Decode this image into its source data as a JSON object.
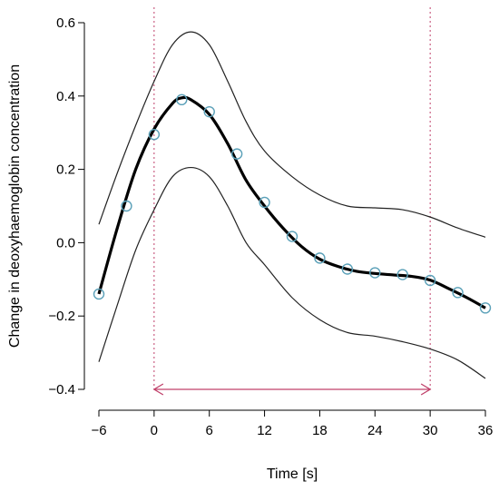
{
  "chart_data": {
    "type": "line",
    "title": "",
    "xlabel": "Time [s]",
    "ylabel": "Change in deoxyhaemoglobin concentration",
    "xlim": [
      -6,
      36
    ],
    "ylim": [
      -0.4,
      0.6
    ],
    "x_ticks": [
      -6,
      0,
      6,
      12,
      18,
      24,
      30,
      36
    ],
    "x_tick_labels": [
      "−6",
      "0",
      "6",
      "12",
      "18",
      "24",
      "30",
      "36"
    ],
    "y_ticks": [
      -0.4,
      -0.2,
      0.0,
      0.2,
      0.4,
      0.6
    ],
    "y_tick_labels": [
      "−0.4",
      "−0.2",
      "0.0",
      "0.2",
      "0.4",
      "0.6"
    ],
    "grid": false,
    "legend": "none",
    "colors": {
      "mean_curve": "#000000",
      "band_curves": "#222222",
      "points_stroke": "#5aa0b8",
      "reference_lines": "#c0406a",
      "arrow": "#c0406a"
    },
    "series": [
      {
        "role": "fitted-mean",
        "x": [
          -6,
          -4,
          -2,
          0,
          2,
          3,
          4,
          6,
          8,
          10,
          12,
          14,
          16,
          18,
          20,
          22,
          24,
          26,
          28,
          30,
          32,
          34,
          36
        ],
        "y": [
          -0.14,
          0.04,
          0.2,
          0.31,
          0.38,
          0.395,
          0.39,
          0.35,
          0.27,
          0.17,
          0.1,
          0.04,
          -0.01,
          -0.045,
          -0.065,
          -0.078,
          -0.084,
          -0.088,
          -0.092,
          -0.102,
          -0.125,
          -0.15,
          -0.178
        ]
      },
      {
        "role": "upper-bound",
        "x": [
          -6,
          -4,
          -2,
          0,
          2,
          4,
          6,
          8,
          10,
          12,
          15,
          18,
          21,
          24,
          27,
          30,
          33,
          36
        ],
        "y": [
          0.05,
          0.19,
          0.32,
          0.44,
          0.54,
          0.575,
          0.54,
          0.44,
          0.33,
          0.25,
          0.18,
          0.13,
          0.1,
          0.095,
          0.09,
          0.07,
          0.04,
          0.015
        ]
      },
      {
        "role": "lower-bound",
        "x": [
          -6,
          -4,
          -2,
          0,
          2,
          4,
          6,
          8,
          10,
          12,
          15,
          18,
          21,
          24,
          27,
          30,
          33,
          36
        ],
        "y": [
          -0.325,
          -0.17,
          -0.02,
          0.09,
          0.18,
          0.205,
          0.18,
          0.1,
          0.0,
          -0.06,
          -0.15,
          -0.21,
          -0.245,
          -0.255,
          -0.27,
          -0.29,
          -0.32,
          -0.37
        ]
      }
    ],
    "points": {
      "x": [
        -6,
        -3,
        0,
        3,
        6,
        9,
        12,
        15,
        18,
        21,
        24,
        27,
        30,
        33,
        36
      ],
      "y": [
        -0.14,
        0.1,
        0.295,
        0.39,
        0.357,
        0.242,
        0.11,
        0.017,
        -0.042,
        -0.072,
        -0.082,
        -0.087,
        -0.103,
        -0.136,
        -0.178
      ]
    },
    "reference_lines_x": [
      0,
      30
    ],
    "interval_arrow": {
      "from": 0,
      "to": 30,
      "y": -0.4
    }
  }
}
